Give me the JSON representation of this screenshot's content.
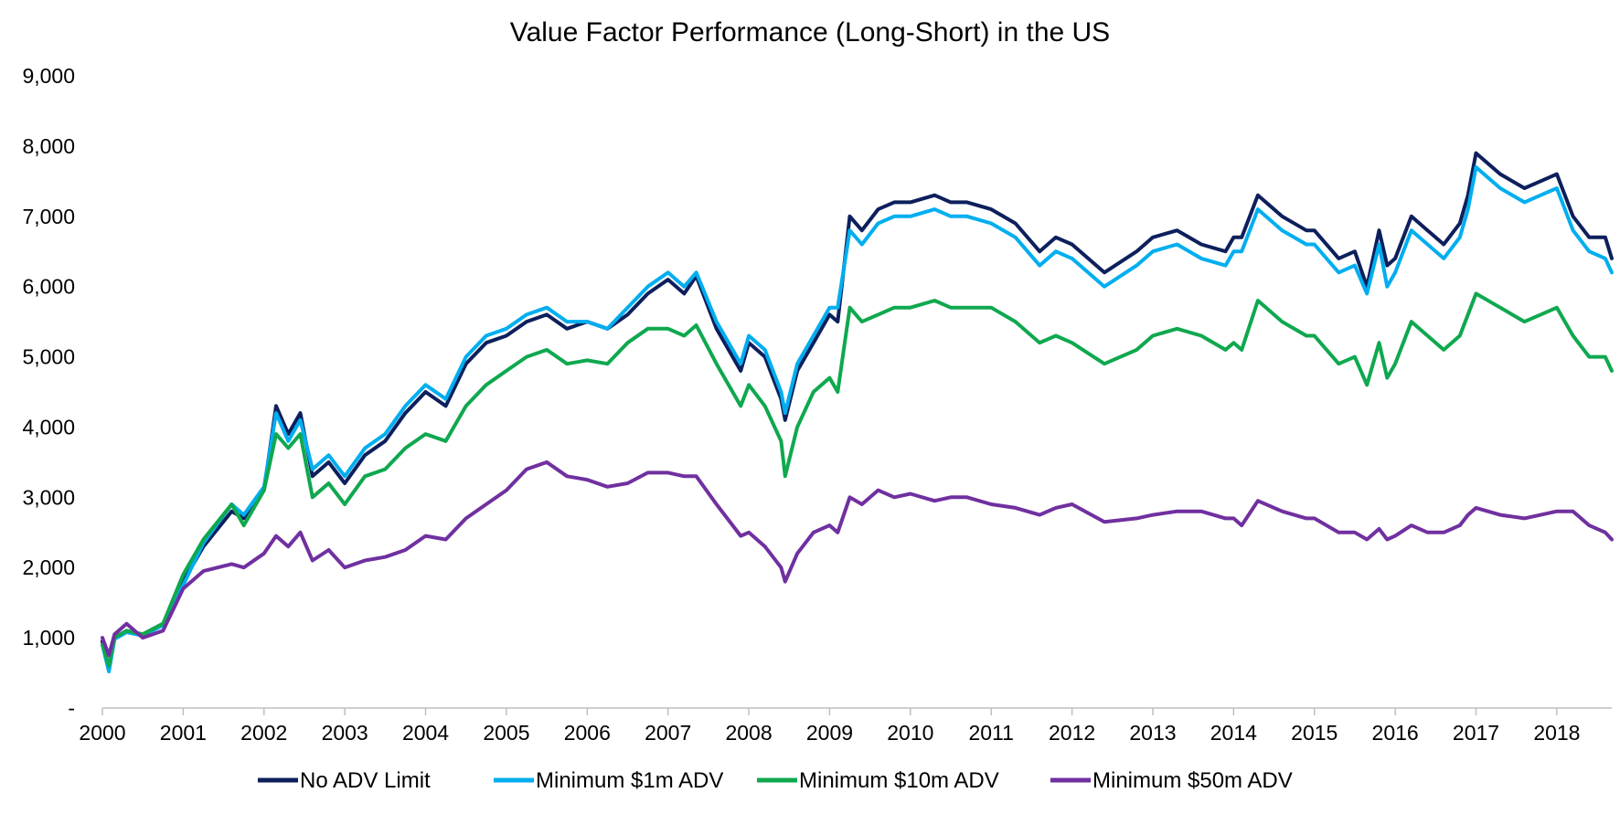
{
  "chart_data": {
    "type": "line",
    "title": "Value Factor Performance (Long-Short) in the US",
    "xlabel": "",
    "ylabel": "",
    "x_ticks": [
      "2000",
      "2001",
      "2002",
      "2003",
      "2004",
      "2005",
      "2006",
      "2007",
      "2008",
      "2009",
      "2010",
      "2011",
      "2012",
      "2013",
      "2014",
      "2015",
      "2016",
      "2017",
      "2018"
    ],
    "y_ticks": [
      "-",
      "1,000",
      "2,000",
      "3,000",
      "4,000",
      "5,000",
      "6,000",
      "7,000",
      "8,000",
      "9,000"
    ],
    "xlim": [
      2000,
      2018.68
    ],
    "ylim": [
      0,
      9000
    ],
    "grid": false,
    "legend_position": "bottom",
    "series": [
      {
        "name": "No ADV Limit",
        "color": "#0d1f5c",
        "x": [
          2000.0,
          2000.08,
          2000.15,
          2000.3,
          2000.5,
          2000.75,
          2001.0,
          2001.25,
          2001.6,
          2001.75,
          2002.0,
          2002.15,
          2002.3,
          2002.45,
          2002.6,
          2002.8,
          2003.0,
          2003.25,
          2003.5,
          2003.75,
          2004.0,
          2004.25,
          2004.5,
          2004.75,
          2005.0,
          2005.25,
          2005.5,
          2005.75,
          2006.0,
          2006.25,
          2006.5,
          2006.75,
          2007.0,
          2007.2,
          2007.35,
          2007.6,
          2007.9,
          2008.0,
          2008.2,
          2008.4,
          2008.45,
          2008.6,
          2008.8,
          2009.0,
          2009.1,
          2009.25,
          2009.4,
          2009.6,
          2009.8,
          2010.0,
          2010.3,
          2010.5,
          2010.7,
          2011.0,
          2011.3,
          2011.6,
          2011.8,
          2012.0,
          2012.4,
          2012.8,
          2013.0,
          2013.3,
          2013.6,
          2013.9,
          2014.0,
          2014.1,
          2014.3,
          2014.6,
          2014.9,
          2015.0,
          2015.3,
          2015.5,
          2015.65,
          2015.8,
          2015.9,
          2016.0,
          2016.2,
          2016.4,
          2016.6,
          2016.8,
          2016.9,
          2017.0,
          2017.3,
          2017.6,
          2017.8,
          2018.0,
          2018.2,
          2018.4,
          2018.6,
          2018.68
        ],
        "values": [
          950,
          550,
          1000,
          1100,
          1050,
          1200,
          1800,
          2300,
          2800,
          2700,
          3100,
          4300,
          3900,
          4200,
          3300,
          3500,
          3200,
          3600,
          3800,
          4200,
          4500,
          4300,
          4900,
          5200,
          5300,
          5500,
          5600,
          5400,
          5500,
          5400,
          5600,
          5900,
          6100,
          5900,
          6150,
          5400,
          4800,
          5200,
          5000,
          4400,
          4100,
          4800,
          5200,
          5600,
          5500,
          7000,
          6800,
          7100,
          7200,
          7200,
          7300,
          7200,
          7200,
          7100,
          6900,
          6500,
          6700,
          6600,
          6200,
          6500,
          6700,
          6800,
          6600,
          6500,
          6700,
          6700,
          7300,
          7000,
          6800,
          6800,
          6400,
          6500,
          6000,
          6800,
          6300,
          6400,
          7000,
          6800,
          6600,
          6900,
          7300,
          7900,
          7600,
          7400,
          7500,
          7600,
          7000,
          6700,
          6700,
          6400
        ]
      },
      {
        "name": "Minimum $1m ADV",
        "color": "#00aeef",
        "x": [
          2000.0,
          2000.08,
          2000.15,
          2000.3,
          2000.5,
          2000.75,
          2001.0,
          2001.25,
          2001.6,
          2001.75,
          2002.0,
          2002.15,
          2002.3,
          2002.45,
          2002.6,
          2002.8,
          2003.0,
          2003.25,
          2003.5,
          2003.75,
          2004.0,
          2004.25,
          2004.5,
          2004.75,
          2005.0,
          2005.25,
          2005.5,
          2005.75,
          2006.0,
          2006.25,
          2006.5,
          2006.75,
          2007.0,
          2007.2,
          2007.35,
          2007.6,
          2007.9,
          2008.0,
          2008.2,
          2008.4,
          2008.45,
          2008.6,
          2008.8,
          2009.0,
          2009.1,
          2009.25,
          2009.4,
          2009.6,
          2009.8,
          2010.0,
          2010.3,
          2010.5,
          2010.7,
          2011.0,
          2011.3,
          2011.6,
          2011.8,
          2012.0,
          2012.4,
          2012.8,
          2013.0,
          2013.3,
          2013.6,
          2013.9,
          2014.0,
          2014.1,
          2014.3,
          2014.6,
          2014.9,
          2015.0,
          2015.3,
          2015.5,
          2015.65,
          2015.8,
          2015.9,
          2016.0,
          2016.2,
          2016.4,
          2016.6,
          2016.8,
          2016.9,
          2017.0,
          2017.3,
          2017.6,
          2017.8,
          2018.0,
          2018.2,
          2018.4,
          2018.6,
          2018.68
        ],
        "values": [
          900,
          520,
          980,
          1080,
          1030,
          1180,
          1750,
          2350,
          2900,
          2750,
          3150,
          4200,
          3800,
          4100,
          3400,
          3600,
          3300,
          3700,
          3900,
          4300,
          4600,
          4400,
          5000,
          5300,
          5400,
          5600,
          5700,
          5500,
          5500,
          5400,
          5700,
          6000,
          6200,
          6000,
          6200,
          5500,
          4900,
          5300,
          5100,
          4500,
          4200,
          4900,
          5300,
          5700,
          5700,
          6800,
          6600,
          6900,
          7000,
          7000,
          7100,
          7000,
          7000,
          6900,
          6700,
          6300,
          6500,
          6400,
          6000,
          6300,
          6500,
          6600,
          6400,
          6300,
          6500,
          6500,
          7100,
          6800,
          6600,
          6600,
          6200,
          6300,
          5900,
          6600,
          6000,
          6200,
          6800,
          6600,
          6400,
          6700,
          7100,
          7700,
          7400,
          7200,
          7300,
          7400,
          6800,
          6500,
          6400,
          6200
        ]
      },
      {
        "name": "Minimum $10m ADV",
        "color": "#0fa84f",
        "x": [
          2000.0,
          2000.08,
          2000.15,
          2000.3,
          2000.5,
          2000.75,
          2001.0,
          2001.25,
          2001.6,
          2001.75,
          2002.0,
          2002.15,
          2002.3,
          2002.45,
          2002.6,
          2002.8,
          2003.0,
          2003.25,
          2003.5,
          2003.75,
          2004.0,
          2004.25,
          2004.5,
          2004.75,
          2005.0,
          2005.25,
          2005.5,
          2005.75,
          2006.0,
          2006.25,
          2006.5,
          2006.75,
          2007.0,
          2007.2,
          2007.35,
          2007.6,
          2007.9,
          2008.0,
          2008.2,
          2008.4,
          2008.45,
          2008.6,
          2008.8,
          2009.0,
          2009.1,
          2009.25,
          2009.4,
          2009.6,
          2009.8,
          2010.0,
          2010.3,
          2010.5,
          2010.7,
          2011.0,
          2011.3,
          2011.6,
          2011.8,
          2012.0,
          2012.4,
          2012.8,
          2013.0,
          2013.3,
          2013.6,
          2013.9,
          2014.0,
          2014.1,
          2014.3,
          2014.6,
          2014.9,
          2015.0,
          2015.3,
          2015.5,
          2015.65,
          2015.8,
          2015.9,
          2016.0,
          2016.2,
          2016.4,
          2016.6,
          2016.8,
          2016.9,
          2017.0,
          2017.3,
          2017.6,
          2017.8,
          2018.0,
          2018.2,
          2018.4,
          2018.6,
          2018.68
        ],
        "values": [
          900,
          600,
          1000,
          1100,
          1050,
          1200,
          1900,
          2400,
          2900,
          2600,
          3100,
          3900,
          3700,
          3900,
          3000,
          3200,
          2900,
          3300,
          3400,
          3700,
          3900,
          3800,
          4300,
          4600,
          4800,
          5000,
          5100,
          4900,
          4950,
          4900,
          5200,
          5400,
          5400,
          5300,
          5450,
          4900,
          4300,
          4600,
          4300,
          3800,
          3300,
          4000,
          4500,
          4700,
          4500,
          5700,
          5500,
          5600,
          5700,
          5700,
          5800,
          5700,
          5700,
          5700,
          5500,
          5200,
          5300,
          5200,
          4900,
          5100,
          5300,
          5400,
          5300,
          5100,
          5200,
          5100,
          5800,
          5500,
          5300,
          5300,
          4900,
          5000,
          4600,
          5200,
          4700,
          4900,
          5500,
          5300,
          5100,
          5300,
          5600,
          5900,
          5700,
          5500,
          5600,
          5700,
          5300,
          5000,
          5000,
          4800
        ]
      },
      {
        "name": "Minimum $50m ADV",
        "color": "#7030a0",
        "x": [
          2000.0,
          2000.08,
          2000.15,
          2000.3,
          2000.5,
          2000.75,
          2001.0,
          2001.25,
          2001.6,
          2001.75,
          2002.0,
          2002.15,
          2002.3,
          2002.45,
          2002.6,
          2002.8,
          2003.0,
          2003.25,
          2003.5,
          2003.75,
          2004.0,
          2004.25,
          2004.5,
          2004.75,
          2005.0,
          2005.25,
          2005.5,
          2005.75,
          2006.0,
          2006.25,
          2006.5,
          2006.75,
          2007.0,
          2007.2,
          2007.35,
          2007.6,
          2007.9,
          2008.0,
          2008.2,
          2008.4,
          2008.45,
          2008.6,
          2008.8,
          2009.0,
          2009.1,
          2009.25,
          2009.4,
          2009.6,
          2009.8,
          2010.0,
          2010.3,
          2010.5,
          2010.7,
          2011.0,
          2011.3,
          2011.6,
          2011.8,
          2012.0,
          2012.4,
          2012.8,
          2013.0,
          2013.3,
          2013.6,
          2013.9,
          2014.0,
          2014.1,
          2014.3,
          2014.6,
          2014.9,
          2015.0,
          2015.3,
          2015.5,
          2015.65,
          2015.8,
          2015.9,
          2016.0,
          2016.2,
          2016.4,
          2016.6,
          2016.8,
          2016.9,
          2017.0,
          2017.3,
          2017.6,
          2017.8,
          2018.0,
          2018.2,
          2018.4,
          2018.6,
          2018.68
        ],
        "values": [
          1000,
          750,
          1050,
          1200,
          1000,
          1100,
          1700,
          1950,
          2050,
          2000,
          2200,
          2450,
          2300,
          2500,
          2100,
          2250,
          2000,
          2100,
          2150,
          2250,
          2450,
          2400,
          2700,
          2900,
          3100,
          3400,
          3500,
          3300,
          3250,
          3150,
          3200,
          3350,
          3350,
          3300,
          3300,
          2900,
          2450,
          2500,
          2300,
          2000,
          1800,
          2200,
          2500,
          2600,
          2500,
          3000,
          2900,
          3100,
          3000,
          3050,
          2950,
          3000,
          3000,
          2900,
          2850,
          2750,
          2850,
          2900,
          2650,
          2700,
          2750,
          2800,
          2800,
          2700,
          2700,
          2600,
          2950,
          2800,
          2700,
          2700,
          2500,
          2500,
          2400,
          2550,
          2400,
          2450,
          2600,
          2500,
          2500,
          2600,
          2750,
          2850,
          2750,
          2700,
          2750,
          2800,
          2800,
          2600,
          2500,
          2400
        ]
      }
    ]
  }
}
